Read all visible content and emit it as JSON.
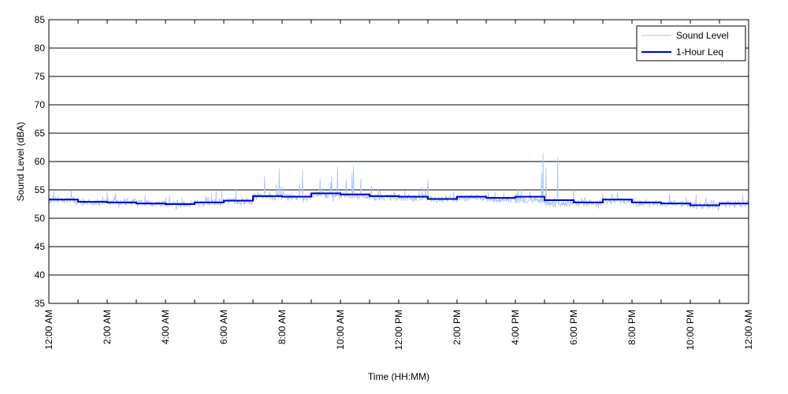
{
  "chart_data": {
    "type": "line",
    "title": "",
    "xlabel": "Time (HH:MM)",
    "ylabel": "Sound Level (dBA)",
    "xlim": [
      0,
      24
    ],
    "ylim": [
      35,
      85
    ],
    "grid": "horizontal",
    "legend_position": "top-right",
    "y_ticks": [
      35,
      40,
      45,
      50,
      55,
      60,
      65,
      70,
      75,
      80,
      85
    ],
    "x_ticks": [
      0,
      2,
      4,
      6,
      8,
      10,
      12,
      14,
      16,
      18,
      20,
      22,
      24
    ],
    "x_tick_labels": [
      "12:00 AM",
      "2:00 AM",
      "4:00 AM",
      "6:00 AM",
      "8:00 AM",
      "10:00 AM",
      "12:00 PM",
      "2:00 PM",
      "4:00 PM",
      "6:00 PM",
      "8:00 PM",
      "10:00 PM",
      "12:00 AM"
    ],
    "series": [
      {
        "name": "Sound Level",
        "color": "#a8c4f2",
        "style": "thin noisy trace",
        "base_per_hour": [
          53.2,
          52.8,
          52.9,
          52.6,
          52.5,
          52.7,
          53.0,
          53.8,
          53.7,
          54.2,
          54.0,
          53.7,
          53.6,
          53.3,
          53.6,
          53.4,
          53.2,
          52.6,
          52.7,
          53.1,
          52.7,
          52.6,
          52.3,
          52.5
        ],
        "spikes": [
          {
            "hour": 2.0,
            "value": 55.0
          },
          {
            "hour": 7.4,
            "value": 57.5
          },
          {
            "hour": 7.8,
            "value": 56.0
          },
          {
            "hour": 7.9,
            "value": 58.8
          },
          {
            "hour": 8.6,
            "value": 56.0
          },
          {
            "hour": 8.7,
            "value": 58.7
          },
          {
            "hour": 9.3,
            "value": 57.0
          },
          {
            "hour": 9.7,
            "value": 57.5
          },
          {
            "hour": 9.9,
            "value": 59.1
          },
          {
            "hour": 10.2,
            "value": 57.0
          },
          {
            "hour": 10.4,
            "value": 58.0
          },
          {
            "hour": 10.45,
            "value": 59.2
          },
          {
            "hour": 10.7,
            "value": 57.0
          },
          {
            "hour": 11.3,
            "value": 55.2
          },
          {
            "hour": 12.8,
            "value": 55.5
          },
          {
            "hour": 13.0,
            "value": 56.8
          },
          {
            "hour": 15.6,
            "value": 54.5
          },
          {
            "hour": 16.2,
            "value": 55.0
          },
          {
            "hour": 16.9,
            "value": 58.0
          },
          {
            "hour": 16.95,
            "value": 61.5
          },
          {
            "hour": 17.05,
            "value": 59.0
          },
          {
            "hour": 17.45,
            "value": 60.8
          },
          {
            "hour": 18.0,
            "value": 55.0
          },
          {
            "hour": 19.5,
            "value": 54.6
          },
          {
            "hour": 22.2,
            "value": 54.2
          },
          {
            "hour": 23.8,
            "value": 54.0
          }
        ]
      },
      {
        "name": "1-Hour Leq",
        "color": "#0000cc",
        "style": "step",
        "x": [
          0,
          1,
          2,
          3,
          4,
          5,
          6,
          7,
          8,
          9,
          10,
          11,
          12,
          13,
          14,
          15,
          16,
          17,
          18,
          19,
          20,
          21,
          22,
          23
        ],
        "values": [
          53.3,
          52.9,
          52.8,
          52.6,
          52.5,
          52.8,
          53.1,
          53.9,
          53.8,
          54.4,
          54.2,
          53.9,
          53.8,
          53.4,
          53.8,
          53.6,
          53.8,
          53.2,
          52.8,
          53.3,
          52.8,
          52.6,
          52.3,
          52.6
        ]
      }
    ]
  }
}
